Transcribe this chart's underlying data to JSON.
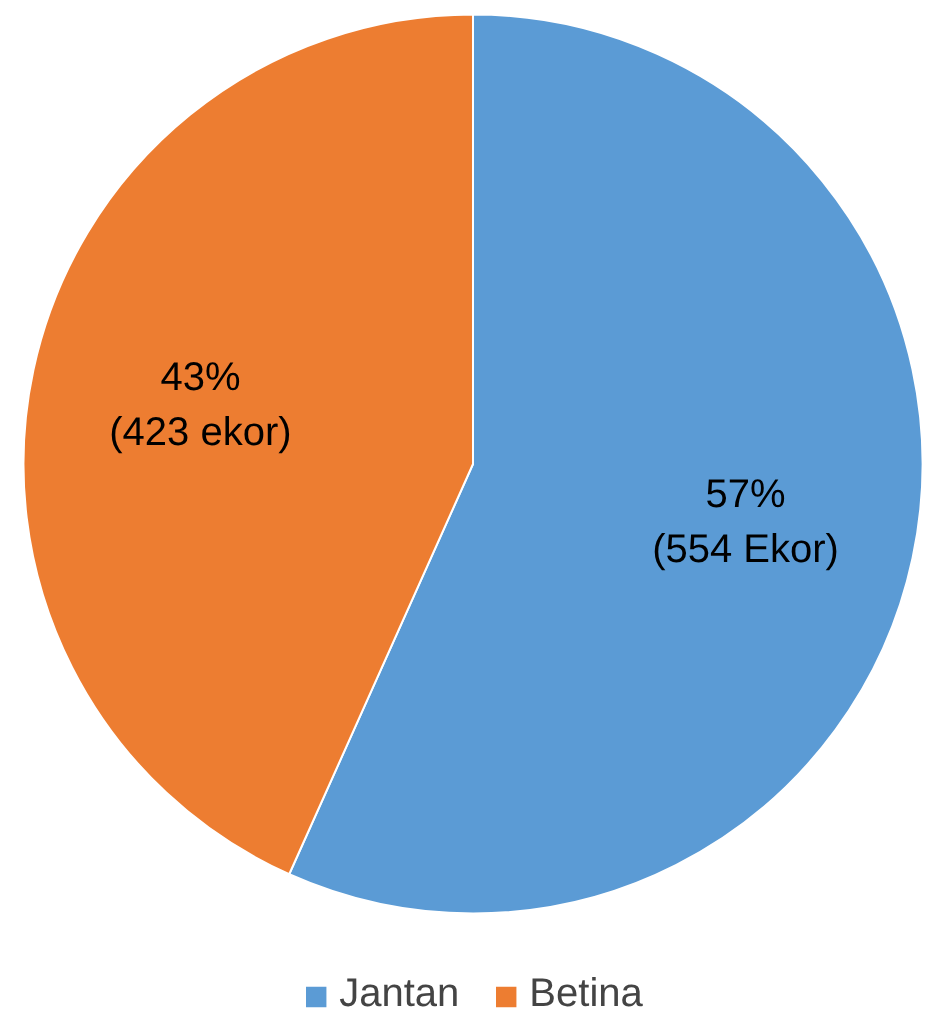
{
  "chart_data": {
    "type": "pie",
    "categories": [
      "Jantan",
      "Betina"
    ],
    "values": [
      554,
      423
    ],
    "colors": [
      "#5b9bd5",
      "#ed7d31"
    ],
    "value_labels": [
      "57%\n(554 Ekor)",
      "43%\n(423 ekor)"
    ],
    "legend": "bottom"
  }
}
